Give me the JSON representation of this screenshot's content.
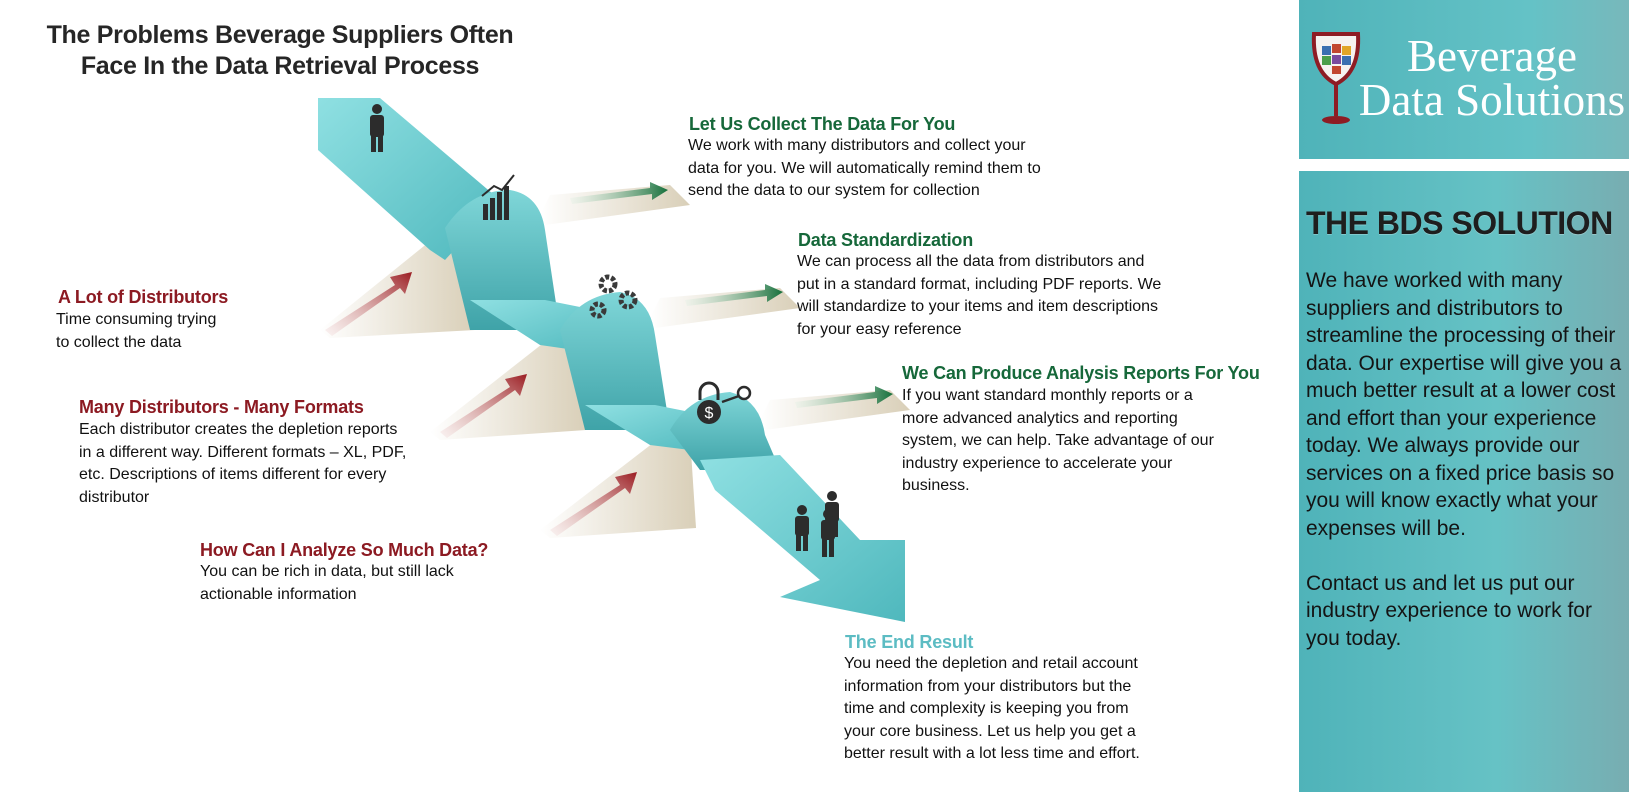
{
  "page_title": "The Problems Beverage Suppliers Often Face In the Data Retrieval Process",
  "problems": [
    {
      "heading": "A Lot of Distributors",
      "body": "Time consuming trying\nto collect the data"
    },
    {
      "heading": "Many Distributors - Many Formats",
      "body": "Each distributor creates the depletion reports\nin a different way.  Different formats – XL, PDF,\netc.  Descriptions of items different for every\ndistributor"
    },
    {
      "heading": "How Can I Analyze So Much Data?",
      "body": "You can be rich in data, but still lack\nactionable information"
    }
  ],
  "solutions": [
    {
      "heading": "Let Us Collect The Data For You",
      "body": "We work with many distributors and collect your\ndata for you. We will automatically remind them to\nsend the data to our system for collection"
    },
    {
      "heading": "Data Standardization",
      "body": "We can process all the data from distributors and\nput in a standard format, including PDF reports.  We\nwill standardize to your items and item descriptions\nfor your easy reference"
    },
    {
      "heading": "We Can Produce Analysis Reports For You",
      "body": "If you want standard monthly reports or a\nmore advanced analytics and reporting\nsystem, we can help.  Take advantage of our\nindustry experience to accelerate your\nbusiness."
    }
  ],
  "end_result": {
    "heading": "The End Result",
    "body": "You need the depletion and retail account\ninformation from your distributors but the\ntime and complexity is keeping you from\nyour core business.  Let us help you get a\nbetter result with a lot less time and effort."
  },
  "brand": {
    "line1": "Beverage",
    "line2": "Data Solutions"
  },
  "solution_panel": {
    "title": "THE BDS SOLUTION",
    "body": "We have worked with many suppliers and distributors to streamline the processing of their data.  Our expertise will give you a much better result at a lower cost and effort than your experience today.  We always provide our services on a fixed price basis so you will know exactly what your expenses will be.\n\nContact us and let us put our industry experience to work for you today."
  },
  "icons": [
    "businessman-icon",
    "bar-chart-icon",
    "gears-icon",
    "lock-key-icon",
    "business-group-icon",
    "wine-glass-logo"
  ],
  "colors": {
    "problem_heading": "#8c1a22",
    "solution_heading": "#16683a",
    "end_heading": "#5cbcc3",
    "ribbon": "#6fd0d3",
    "panel": "#5cbcc3"
  }
}
